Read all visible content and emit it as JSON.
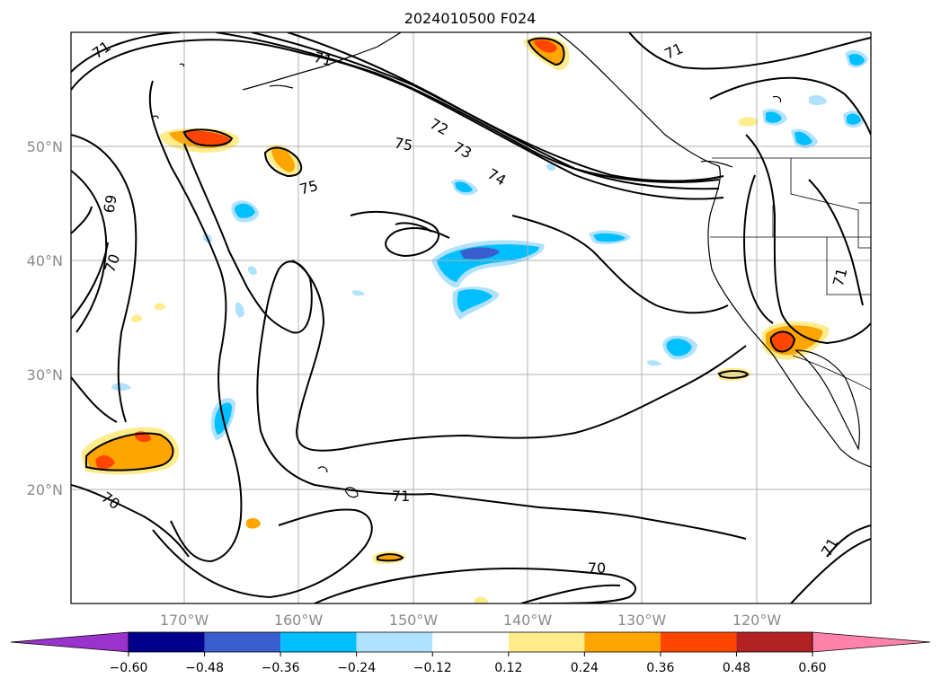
{
  "title": "2024010500 F024",
  "lat_labels": [
    "50°N",
    "40°N",
    "30°N",
    "20°N"
  ],
  "lon_labels": [
    "170°W",
    "160°W",
    "150°W",
    "140°W",
    "130°W",
    "120°W"
  ],
  "contour_labels": [
    "71",
    "71",
    "71",
    "71",
    "71",
    "71",
    "72",
    "73",
    "74",
    "75",
    "75",
    "69",
    "70",
    "70",
    "70"
  ],
  "colorbar": {
    "ticks": [
      "−0.60",
      "−0.48",
      "−0.36",
      "−0.24",
      "−0.12",
      "0.12",
      "0.24",
      "0.36",
      "0.48",
      "0.60"
    ],
    "colors": [
      "#9933cc",
      "#00008b",
      "#3a5fcd",
      "#00bfff",
      "#b0e2ff",
      "#ffffff",
      "#ffec8b",
      "#ffa500",
      "#ff4500",
      "#b22222",
      "#ff82ab"
    ]
  },
  "colors": {
    "orange": "#ffa500",
    "red_orange": "#ff4500",
    "light_yellow": "#ffec8b",
    "deep_sky": "#00bfff",
    "light_blue": "#b0e2ff",
    "royal_blue": "#3a5fcd"
  }
}
